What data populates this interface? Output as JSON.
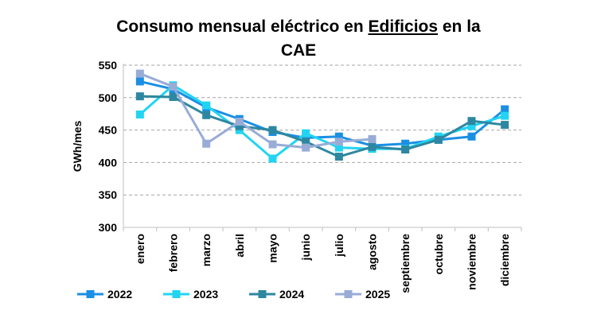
{
  "chart_data": {
    "type": "line",
    "title_parts": [
      "Consumo mensual eléctrico en ",
      "Edificios",
      " en la"
    ],
    "title_line2": "CAE",
    "ylabel": "GWh/mes",
    "xlabel": "",
    "ylim": [
      300,
      550
    ],
    "yticks": [
      300,
      350,
      400,
      450,
      500,
      550
    ],
    "grid": true,
    "legend_position": "bottom",
    "categories": [
      "enero",
      "febrero",
      "marzo",
      "abril",
      "mayo",
      "junio",
      "julio",
      "agosto",
      "septiembre",
      "octubre",
      "noviembre",
      "diciembre"
    ],
    "series": [
      {
        "name": "2022",
        "color": "#1a8fe3",
        "marker": "square",
        "values": [
          525,
          513,
          485,
          467,
          447,
          438,
          440,
          426,
          429,
          435,
          440,
          482
        ]
      },
      {
        "name": "2023",
        "color": "#22d4f2",
        "marker": "square",
        "values": [
          474,
          519,
          488,
          450,
          406,
          445,
          423,
          421,
          421,
          440,
          456,
          472
        ]
      },
      {
        "name": "2024",
        "color": "#2e87a0",
        "marker": "square",
        "values": [
          502,
          501,
          473,
          456,
          450,
          432,
          409,
          424,
          420,
          435,
          464,
          458
        ]
      },
      {
        "name": "2025",
        "color": "#98acd6",
        "marker": "square",
        "values": [
          537,
          517,
          429,
          463,
          428,
          423,
          432,
          436,
          null,
          null,
          null,
          null
        ]
      }
    ]
  }
}
